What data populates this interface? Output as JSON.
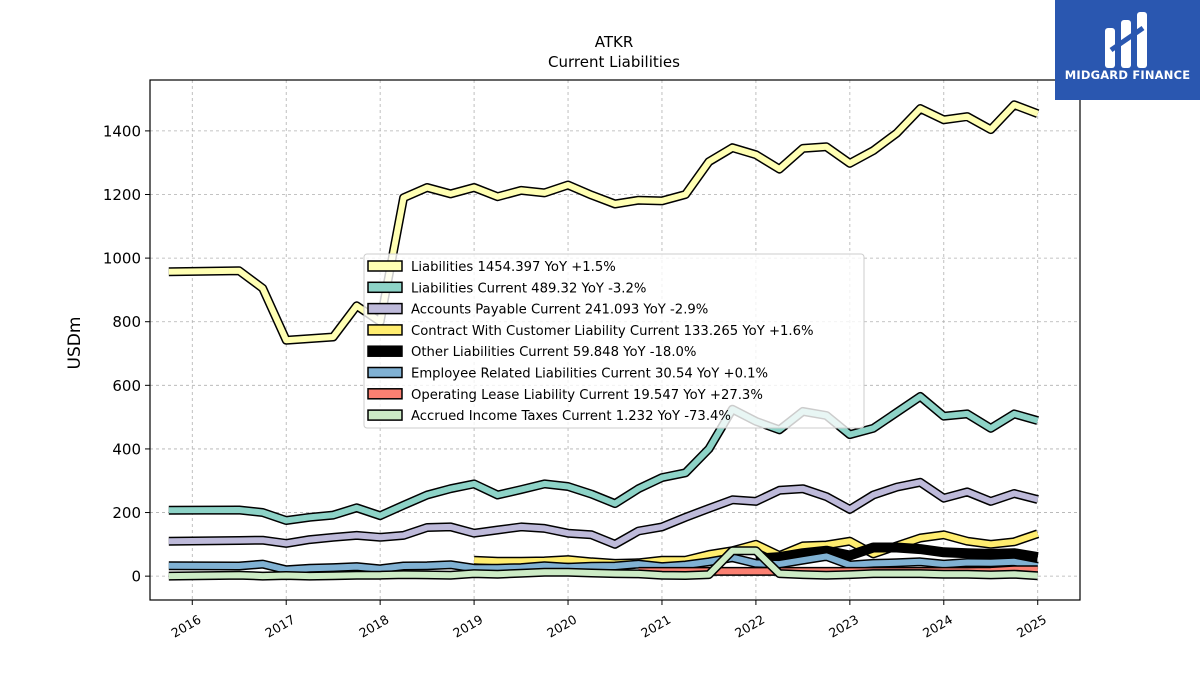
{
  "brand": {
    "name": "MIDGARD FINANCE"
  },
  "chart_data": {
    "type": "line",
    "title": "ATKR",
    "subtitle": "Current  Liabilities",
    "ylabel": "USDm",
    "xlabel": "",
    "ylim": [
      -75,
      1560
    ],
    "xlim": [
      2015.55,
      2025.45
    ],
    "yticks": [
      0,
      200,
      400,
      600,
      800,
      1000,
      1200,
      1400
    ],
    "xticks": [
      "2016",
      "2017",
      "2018",
      "2019",
      "2020",
      "2021",
      "2022",
      "2023",
      "2024",
      "2025"
    ],
    "grid": true,
    "legend_position": "center-left",
    "x": [
      2015.75,
      2016.5,
      2016.75,
      2017.0,
      2017.25,
      2017.5,
      2017.75,
      2018.0,
      2018.25,
      2018.5,
      2018.75,
      2019.0,
      2019.25,
      2019.5,
      2019.75,
      2020.0,
      2020.25,
      2020.5,
      2020.75,
      2021.0,
      2021.25,
      2021.5,
      2021.75,
      2022.0,
      2022.25,
      2022.5,
      2022.75,
      2023.0,
      2023.25,
      2023.5,
      2023.75,
      2024.0,
      2024.25,
      2024.5,
      2024.75,
      2025.0
    ],
    "series": [
      {
        "name": "Liabilities  1454.397 YoY +1.5%",
        "color": "#ffffb3",
        "width": 6,
        "values": [
          957,
          960,
          905,
          742,
          747,
          752,
          850,
          800,
          1190,
          1222,
          1202,
          1222,
          1193,
          1213,
          1205,
          1230,
          1198,
          1170,
          1182,
          1180,
          1200,
          1303,
          1347,
          1325,
          1280,
          1345,
          1350,
          1298,
          1338,
          1393,
          1470,
          1435,
          1445,
          1404,
          1482,
          1454
        ]
      },
      {
        "name": "Liabilities Current  489.32 YoY -3.2%",
        "color": "#8dd3c7",
        "width": 6,
        "values": [
          207,
          208,
          200,
          175,
          185,
          192,
          215,
          190,
          223,
          255,
          275,
          290,
          255,
          272,
          290,
          282,
          258,
          228,
          275,
          310,
          325,
          400,
          525,
          487,
          460,
          518,
          505,
          445,
          465,
          515,
          565,
          503,
          510,
          465,
          510,
          489
        ]
      },
      {
        "name": "Accounts Payable Current  241.093 YoY -2.9%",
        "color": "#bebada",
        "width": 6,
        "values": [
          110,
          112,
          113,
          103,
          115,
          122,
          128,
          122,
          128,
          153,
          155,
          135,
          145,
          155,
          150,
          135,
          130,
          100,
          142,
          155,
          185,
          213,
          240,
          235,
          270,
          275,
          250,
          210,
          255,
          280,
          295,
          245,
          265,
          235,
          260,
          241
        ]
      },
      {
        "name": "Contract With Customer Liability Current  133.265 YoY +1.6%",
        "color": "#ffed6f",
        "width": 6,
        "values": [
          null,
          null,
          null,
          null,
          null,
          null,
          null,
          null,
          null,
          null,
          null,
          50,
          47,
          47,
          48,
          52,
          45,
          40,
          42,
          50,
          50,
          68,
          80,
          100,
          65,
          95,
          98,
          110,
          70,
          95,
          120,
          130,
          110,
          100,
          108,
          133
        ]
      },
      {
        "name": "Other Liabilities Current  59.848 YoY -18.0%",
        "color": "#000000",
        "width": 7,
        "values": [
          null,
          null,
          null,
          null,
          null,
          null,
          null,
          null,
          null,
          null,
          null,
          null,
          null,
          null,
          null,
          null,
          null,
          null,
          null,
          null,
          null,
          null,
          null,
          55,
          60,
          72,
          80,
          65,
          90,
          90,
          85,
          75,
          72,
          70,
          72,
          60
        ]
      },
      {
        "name": "Employee Related Liabilities Current  30.54 YoY +0.1%",
        "color": "#80b1d3",
        "width": 6,
        "values": [
          33,
          32,
          38,
          20,
          25,
          27,
          30,
          23,
          32,
          33,
          36,
          25,
          25,
          27,
          33,
          28,
          31,
          32,
          38,
          30,
          35,
          45,
          58,
          40,
          38,
          50,
          62,
          35,
          40,
          42,
          45,
          38,
          43,
          42,
          45,
          31
        ]
      },
      {
        "name": "Operating Lease Liability Current  19.547 YoY +27.3%",
        "color": "#fb8072",
        "width": 6,
        "values": [
          null,
          null,
          null,
          null,
          null,
          null,
          null,
          null,
          null,
          null,
          null,
          null,
          null,
          null,
          null,
          null,
          null,
          null,
          15,
          15,
          15,
          15,
          15,
          15,
          15,
          15,
          15,
          15,
          15,
          15,
          15,
          15,
          15,
          16,
          20,
          20
        ]
      },
      {
        "name": "Accrued Income Taxes Current  1.232 YoY -73.4%",
        "color": "#ccebc5",
        "width": 6,
        "values": [
          0,
          3,
          0,
          2,
          0,
          1,
          3,
          3,
          5,
          4,
          3,
          8,
          6,
          9,
          12,
          12,
          10,
          8,
          7,
          3,
          2,
          5,
          80,
          80,
          8,
          5,
          3,
          5,
          8,
          8,
          8,
          6,
          6,
          4,
          6,
          1
        ]
      }
    ]
  }
}
